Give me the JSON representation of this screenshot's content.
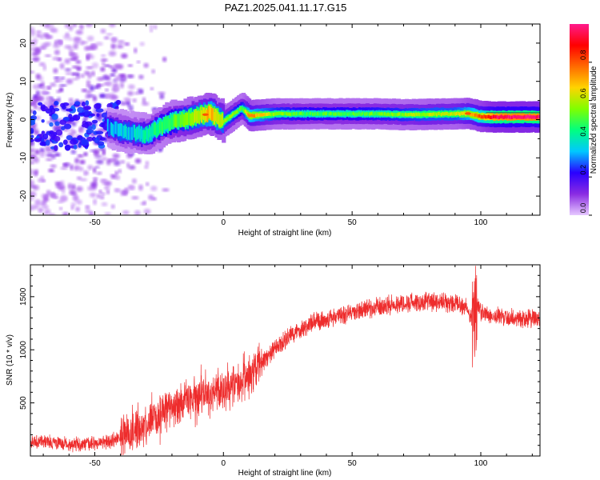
{
  "page": {
    "title": "PAZ1.2025.041.11.17.G15"
  },
  "chart_data": [
    {
      "type": "heatmap",
      "xlabel": "Height of straight line (km)",
      "ylabel": "Frequency (Hz)",
      "xlim": [
        -75,
        123
      ],
      "ylim": [
        -25,
        25
      ],
      "xticks": [
        -50,
        0,
        50,
        100
      ],
      "yticks": [
        -20,
        -10,
        0,
        10,
        20
      ],
      "colorbar": {
        "label": "Normalized spectral amplitude",
        "range": [
          0,
          1
        ],
        "ticks": [
          0.0,
          0.2,
          0.4,
          0.6,
          0.8
        ],
        "colormap": [
          "#e6c8ff",
          "#8a2be2",
          "#2a00ff",
          "#00c8ff",
          "#00ff80",
          "#7fff00",
          "#ffd400",
          "#ff6a00",
          "#ff0000",
          "#ff1a8c"
        ]
      },
      "ridge": {
        "x": [
          -45,
          -40,
          -35,
          -30,
          -25,
          -20,
          -15,
          -10,
          -5,
          0,
          3,
          7,
          10,
          20,
          30,
          40,
          50,
          60,
          70,
          80,
          90,
          95,
          100,
          105,
          110,
          123
        ],
        "freq": [
          -2,
          -3,
          -3.5,
          -4,
          -2,
          -0.5,
          0,
          1,
          1.5,
          -0.5,
          1,
          3,
          1,
          1.5,
          1.5,
          1.5,
          1.5,
          1.5,
          1.3,
          1.4,
          1.5,
          1.6,
          0.8,
          0.7,
          0.7,
          0.7
        ],
        "amplitude": [
          0.3,
          0.35,
          0.35,
          0.4,
          0.45,
          0.5,
          0.55,
          0.6,
          0.7,
          0.6,
          0.55,
          0.5,
          0.75,
          0.55,
          0.5,
          0.5,
          0.5,
          0.52,
          0.55,
          0.6,
          0.6,
          0.7,
          0.8,
          0.95,
          0.98,
          0.98
        ]
      }
    },
    {
      "type": "line",
      "xlabel": "Height of straight line (km)",
      "ylabel": "SNR (10 * v/v)",
      "xlim": [
        -75,
        123
      ],
      "ylim": [
        0,
        1800
      ],
      "xticks": [
        -50,
        0,
        50,
        100
      ],
      "yticks": [
        500,
        1000,
        1500
      ],
      "series": [
        {
          "color": "#ee2c2c",
          "x": [
            -75,
            -70,
            -65,
            -60,
            -55,
            -50,
            -45,
            -40,
            -35,
            -30,
            -25,
            -20,
            -15,
            -10,
            -5,
            0,
            5,
            10,
            15,
            20,
            25,
            30,
            35,
            40,
            45,
            50,
            55,
            60,
            65,
            70,
            75,
            80,
            85,
            90,
            95,
            97,
            98,
            100,
            105,
            110,
            115,
            120,
            123
          ],
          "values": [
            130,
            140,
            120,
            110,
            110,
            115,
            130,
            180,
            240,
            300,
            380,
            480,
            520,
            560,
            600,
            630,
            680,
            750,
            880,
            1000,
            1110,
            1200,
            1250,
            1290,
            1320,
            1350,
            1380,
            1400,
            1420,
            1440,
            1450,
            1450,
            1440,
            1430,
            1400,
            1250,
            1450,
            1350,
            1320,
            1300,
            1300,
            1290,
            1280
          ]
        }
      ]
    }
  ]
}
